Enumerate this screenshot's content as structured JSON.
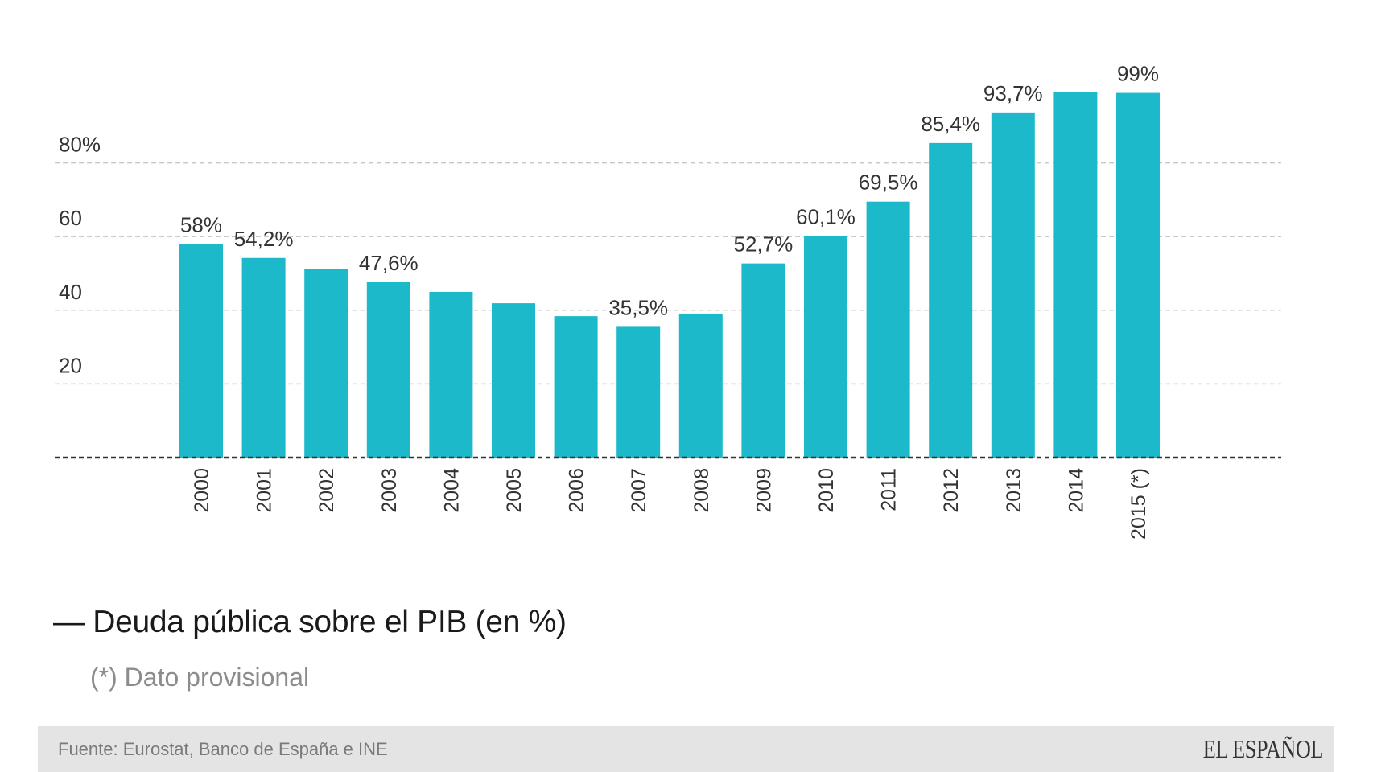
{
  "chart_data": {
    "type": "bar",
    "title": "Deuda pública sobre el PIB (en %)",
    "subtitle": "(*) Dato provisional",
    "xlabel": "",
    "ylabel": "",
    "ylim": [
      0,
      100
    ],
    "grid": true,
    "yticks": [
      {
        "value": 20,
        "label": "20"
      },
      {
        "value": 40,
        "label": "40"
      },
      {
        "value": 60,
        "label": "60"
      },
      {
        "value": 80,
        "label": "80%"
      }
    ],
    "categories": [
      "2000",
      "2001",
      "2002",
      "2003",
      "2004",
      "2005",
      "2006",
      "2007",
      "2008",
      "2009",
      "2010",
      "2011",
      "2012",
      "2013",
      "2014",
      "2015 (*)"
    ],
    "values": [
      58,
      54.2,
      51.1,
      47.6,
      45.0,
      41.9,
      38.4,
      35.5,
      39.1,
      52.7,
      60.1,
      69.5,
      85.4,
      93.7,
      99.3,
      99
    ],
    "data_labels": [
      "58%",
      "54,2%",
      "",
      "47,6%",
      "",
      "",
      "",
      "35,5%",
      "",
      "52,7%",
      "60,1%",
      "69,5%",
      "85,4%",
      "93,7%",
      "",
      "99%"
    ],
    "bar_color": "#1cb9cb",
    "grid_color": "#c8c8c8",
    "baseline_color": "#333333"
  },
  "footer": {
    "source": "Fuente: Eurostat, Banco de España e INE",
    "logo": "EL ESPAÑOL"
  }
}
